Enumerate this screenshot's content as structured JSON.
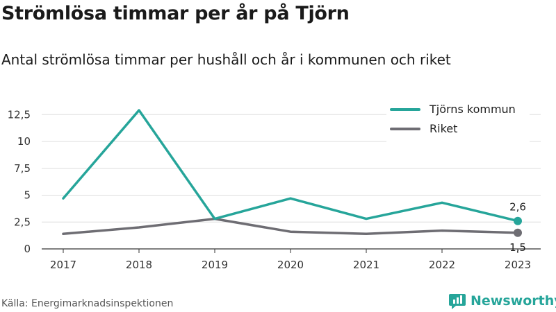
{
  "title": "Strömlösa timmar per år på Tjörn",
  "subtitle": "Antal strömlösa timmar per hushåll och år i kommunen och riket",
  "source": "Källa: Energimarknadsinspektionen",
  "brand": {
    "name": "Newsworthy",
    "icon": "newsworthy-logo-icon",
    "color": "#26a59a"
  },
  "chart_data": {
    "type": "line",
    "categories": [
      "2017",
      "2018",
      "2019",
      "2020",
      "2021",
      "2022",
      "2023"
    ],
    "ylim": [
      0,
      12.5
    ],
    "yticks": [
      "0",
      "2,5",
      "5",
      "7,5",
      "10",
      "12,5"
    ],
    "ytick_values": [
      0,
      2.5,
      5,
      7.5,
      10,
      12.5
    ],
    "grid": true,
    "legend": "top-right",
    "series": [
      {
        "name": "Tjörns kommun",
        "color": "#26a59a",
        "values": [
          4.7,
          12.9,
          2.8,
          4.7,
          2.8,
          4.3,
          2.6
        ],
        "end_label": "2,6"
      },
      {
        "name": "Riket",
        "color": "#6e6d73",
        "values": [
          1.4,
          2.0,
          2.8,
          1.6,
          1.4,
          1.7,
          1.5
        ],
        "end_label": "1,5"
      }
    ]
  }
}
